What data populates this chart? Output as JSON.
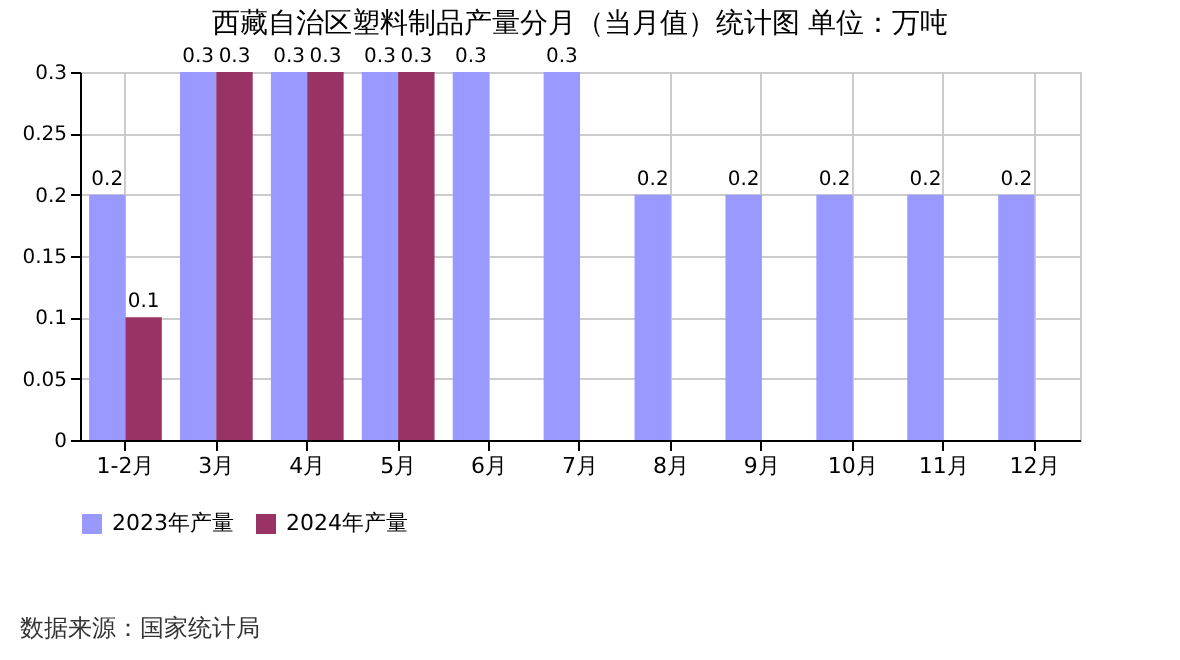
{
  "chart_data": {
    "type": "bar",
    "title": "西藏自治区塑料制品产量分月（当月值）统计图  单位：万吨",
    "categories": [
      "1-2月",
      "3月",
      "4月",
      "5月",
      "6月",
      "7月",
      "8月",
      "9月",
      "10月",
      "11月",
      "12月"
    ],
    "series": [
      {
        "name": "2023年产量",
        "color": "#9999ff",
        "values": [
          0.2,
          0.3,
          0.3,
          0.3,
          0.3,
          0.3,
          0.2,
          0.2,
          0.2,
          0.2,
          0.2
        ]
      },
      {
        "name": "2024年产量",
        "color": "#993366",
        "values": [
          0.1,
          0.3,
          0.3,
          0.3,
          null,
          null,
          null,
          null,
          null,
          null,
          null
        ]
      }
    ],
    "ylim": [
      0,
      0.3
    ],
    "yticks": [
      0,
      0.05,
      0.1,
      0.15,
      0.2,
      0.25,
      0.3
    ],
    "grid": true,
    "legend": "bottom",
    "data_labels": true,
    "annotations": [
      "数据来源：国家统计局"
    ]
  }
}
